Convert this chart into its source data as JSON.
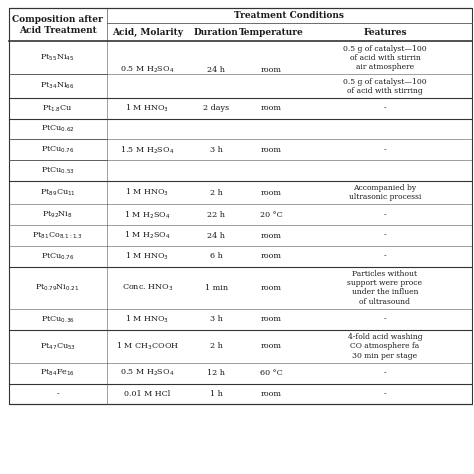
{
  "title": "Treatment Conditions",
  "col0_header": "Composition after\nAcid Treatment",
  "col_headers": [
    "Acid, Molarity",
    "Duration",
    "Temperature",
    "Features"
  ],
  "rows": [
    {
      "composition": "Pt$_{55}$Ni$_{45}$",
      "acid": "0.5 M H$_2$SO$_4$",
      "duration": "24 h",
      "temperature": "room",
      "features": "0.5 g of catalyst—100\nof acid with stirrin\nair atmosphere",
      "group": 1,
      "acid_row": true,
      "sub_divider_below": true
    },
    {
      "composition": "Pt$_{34}$Ni$_{66}$",
      "acid": "",
      "duration": "",
      "temperature": "",
      "features": "0.5 g of catalyst—100\nof acid with stirring",
      "group": 1,
      "acid_row": false,
      "sub_divider_below": false
    },
    {
      "composition": "Pt$_{1.8}$Cu",
      "acid": "1 M HNO$_3$",
      "duration": "2 days",
      "temperature": "room",
      "features": "-",
      "group": 2,
      "acid_row": true,
      "sub_divider_below": false
    },
    {
      "composition": "PtCu$_{0.62}$",
      "acid": "1.5 M H$_2$SO$_4$",
      "duration": "3 h",
      "temperature": "room",
      "features": "",
      "group": 3,
      "acid_row": true,
      "sub_divider_below": true
    },
    {
      "composition": "PtCu$_{0.76}$",
      "acid": "",
      "duration": "",
      "temperature": "",
      "features": "-",
      "group": 3,
      "acid_row": false,
      "sub_divider_below": true
    },
    {
      "composition": "PtCu$_{0.53}$",
      "acid": "",
      "duration": "",
      "temperature": "",
      "features": "",
      "group": 3,
      "acid_row": false,
      "sub_divider_below": false
    },
    {
      "composition": "Pt$_{89}$Cu$_{11}$",
      "acid": "1 M HNO$_3$",
      "duration": "2 h",
      "temperature": "room",
      "features": "Accompanied by\nultrasonic processi",
      "group": 4,
      "acid_row": true,
      "sub_divider_below": false
    },
    {
      "composition": "Pt$_{92}$Ni$_8$",
      "acid": "1 M H$_2$SO$_4$",
      "duration": "22 h",
      "temperature": "20 °C",
      "features": "-",
      "group": 4,
      "acid_row": true,
      "sub_divider_below": false
    },
    {
      "composition": "Pt$_{81}$Co$_{8.1:1.3}$",
      "acid": "1 M H$_2$SO$_4$",
      "duration": "24 h",
      "temperature": "room",
      "features": "-",
      "group": 4,
      "acid_row": true,
      "sub_divider_below": false
    },
    {
      "composition": "PtCu$_{0.76}$",
      "acid": "1 M HNO$_3$",
      "duration": "6 h",
      "temperature": "room",
      "features": "-",
      "group": 4,
      "acid_row": true,
      "sub_divider_below": false
    },
    {
      "composition": "Pt$_{0.79}$Ni$_{0.21}$",
      "acid": "Conc. HNO$_3$",
      "duration": "1 min",
      "temperature": "room",
      "features": "Particles without\nsupport were proce\nunder the influen\nof ultrasound",
      "group": 5,
      "acid_row": true,
      "sub_divider_below": false
    },
    {
      "composition": "PtCu$_{0.36}$",
      "acid": "1 M HNO$_3$",
      "duration": "3 h",
      "temperature": "room",
      "features": "-",
      "group": 5,
      "acid_row": true,
      "sub_divider_below": false
    },
    {
      "composition": "Pt$_{47}$Cu$_{53}$",
      "acid": "1 M CH$_3$COOH",
      "duration": "2 h",
      "temperature": "room",
      "features": "4-fold acid washing\nCO atmosphere fa\n30 min per stage",
      "group": 6,
      "acid_row": true,
      "sub_divider_below": false
    },
    {
      "composition": "Pt$_{84}$Fe$_{16}$",
      "acid": "0.5 M H$_2$SO$_4$",
      "duration": "12 h",
      "temperature": "60 °C",
      "features": "-",
      "group": 6,
      "acid_row": true,
      "sub_divider_below": false
    },
    {
      "composition": "-",
      "acid": "0.01 M HCl",
      "duration": "1 h",
      "temperature": "room",
      "features": "-",
      "group": 7,
      "acid_row": true,
      "sub_divider_below": false
    }
  ],
  "bg_color": "#ffffff",
  "text_color": "#1a1a1a",
  "line_color": "#555555",
  "thick_line_color": "#333333",
  "header_fontsize": 6.5,
  "cell_fontsize": 5.8,
  "feat_fontsize": 5.5
}
